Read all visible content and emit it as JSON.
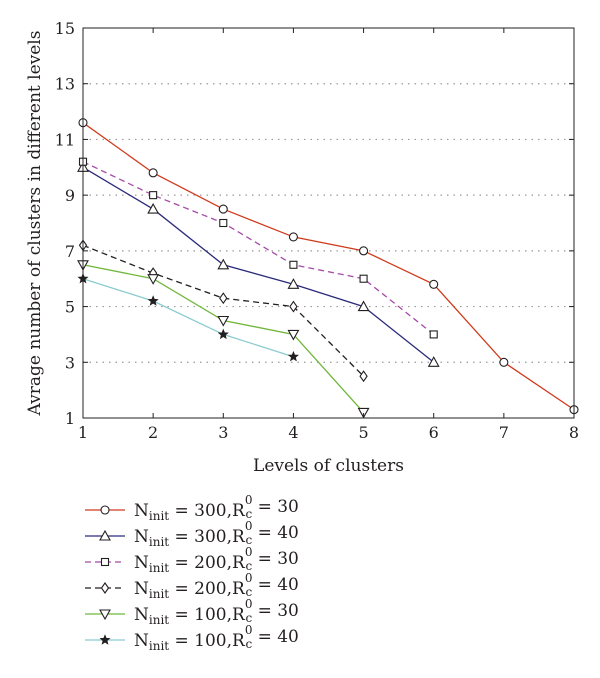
{
  "chart_data": {
    "type": "line",
    "xlabel": "Levels of clusters",
    "ylabel": "Avrage number of clusters in different levels",
    "xlim": [
      1,
      8
    ],
    "ylim": [
      1,
      15
    ],
    "xticks": [
      1,
      2,
      3,
      4,
      5,
      6,
      7,
      8
    ],
    "yticks": [
      1,
      3,
      5,
      7,
      9,
      11,
      13,
      15
    ],
    "grid": "horizontal dotted",
    "legend_position": "below",
    "series": [
      {
        "name": "N_init = 300, R_c^0 = 30",
        "label_base": "N",
        "label_sub": "init",
        "label_mid": " = 300,R",
        "label_sup": "0",
        "label_sub2": "c",
        "label_end": " = 30",
        "color": "#d03a1c",
        "dash": "solid",
        "marker": "circle",
        "x": [
          1,
          2,
          3,
          4,
          5,
          6,
          7,
          8
        ],
        "y": [
          11.6,
          9.8,
          8.5,
          7.5,
          7.0,
          5.8,
          3.0,
          1.3
        ]
      },
      {
        "name": "N_init = 300, R_c^0 = 40",
        "label_base": "N",
        "label_sub": "init",
        "label_mid": " = 300,R",
        "label_sup": "0",
        "label_sub2": "c",
        "label_end": " = 40",
        "color": "#2b2a7a",
        "dash": "solid",
        "marker": "triangle-up",
        "x": [
          1,
          2,
          3,
          4,
          5,
          6
        ],
        "y": [
          10.0,
          8.5,
          6.5,
          5.8,
          5.0,
          3.0
        ]
      },
      {
        "name": "N_init = 200, R_c^0 = 30",
        "label_base": "N",
        "label_sub": "init",
        "label_mid": " = 200,R",
        "label_sup": "0",
        "label_sub2": "c",
        "label_end": " = 30",
        "color": "#a54ba8",
        "dash": "dashed",
        "marker": "square",
        "x": [
          1,
          2,
          3,
          4,
          5,
          6
        ],
        "y": [
          10.2,
          9.0,
          8.0,
          6.5,
          6.0,
          4.0
        ]
      },
      {
        "name": "N_init = 200, R_c^0 = 40",
        "label_base": "N",
        "label_sub": "init",
        "label_mid": " = 200,R",
        "label_sup": "0",
        "label_sub2": "c",
        "label_end": " = 40",
        "color": "#231f20",
        "dash": "dashed",
        "marker": "diamond",
        "x": [
          1,
          2,
          3,
          4,
          5
        ],
        "y": [
          7.2,
          6.2,
          5.3,
          5.0,
          2.5
        ]
      },
      {
        "name": "N_init = 100, R_c^0 = 30",
        "label_base": "N",
        "label_sub": "init",
        "label_mid": " = 100,R",
        "label_sup": "0",
        "label_sub2": "c",
        "label_end": " = 30",
        "color": "#6fb63a",
        "dash": "solid",
        "marker": "triangle-down",
        "x": [
          1,
          2,
          3,
          4,
          5
        ],
        "y": [
          6.5,
          6.0,
          4.5,
          4.0,
          1.2
        ]
      },
      {
        "name": "N_init = 100, R_c^0 = 40",
        "label_base": "N",
        "label_sub": "init",
        "label_mid": " = 100,R",
        "label_sup": "0",
        "label_sub2": "c",
        "label_end": " = 40",
        "color": "#8ccbd0",
        "dash": "solid",
        "marker": "star",
        "x": [
          1,
          2,
          3,
          4
        ],
        "y": [
          6.0,
          5.2,
          4.0,
          3.2
        ]
      }
    ]
  }
}
